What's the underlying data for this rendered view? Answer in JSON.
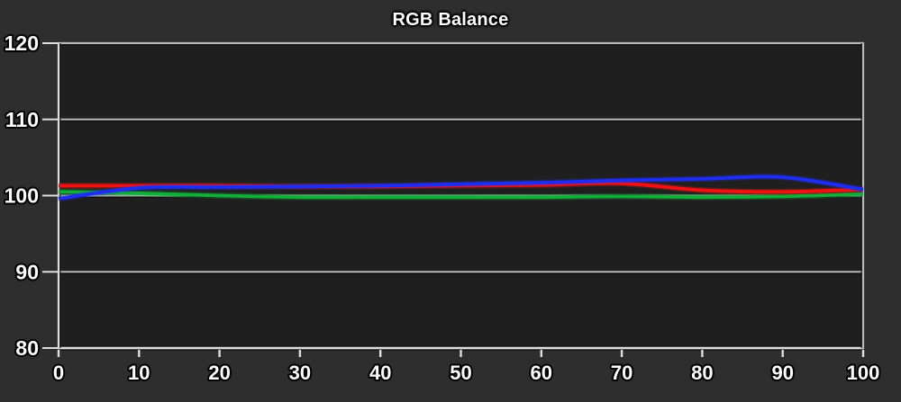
{
  "chart_data": {
    "type": "line",
    "title": "RGB Balance",
    "xlabel": "",
    "ylabel": "",
    "xlim": [
      0,
      100
    ],
    "ylim": [
      80,
      120
    ],
    "xticks": [
      0,
      10,
      20,
      30,
      40,
      50,
      60,
      70,
      80,
      90,
      100
    ],
    "yticks": [
      80,
      90,
      100,
      110,
      120
    ],
    "grid": "horizontal",
    "legend_position": "none",
    "x": [
      0,
      10,
      20,
      30,
      40,
      50,
      60,
      70,
      80,
      90,
      100
    ],
    "series": [
      {
        "name": "Red",
        "color": "#f01212",
        "values": [
          101.3,
          101.3,
          101.3,
          101.2,
          101.2,
          101.3,
          101.4,
          101.6,
          100.7,
          100.5,
          100.8
        ]
      },
      {
        "name": "Green",
        "color": "#12ae3a",
        "values": [
          100.5,
          100.3,
          100.0,
          99.8,
          99.8,
          99.8,
          99.8,
          99.9,
          99.8,
          99.9,
          100.2
        ]
      },
      {
        "name": "Blue",
        "color": "#1e2df0",
        "values": [
          99.6,
          101.0,
          101.1,
          101.2,
          101.3,
          101.5,
          101.7,
          102.0,
          102.2,
          102.4,
          100.8
        ]
      }
    ],
    "colors": {
      "background": "#2e2e2e",
      "plot_background": "#1f1f1f",
      "grid_line": "#b9b9b9",
      "axis_line": "#dedede",
      "grid_shadow": "#0e0e0e",
      "tick_text": "#ffffff",
      "title_text": "#ffffff"
    }
  }
}
